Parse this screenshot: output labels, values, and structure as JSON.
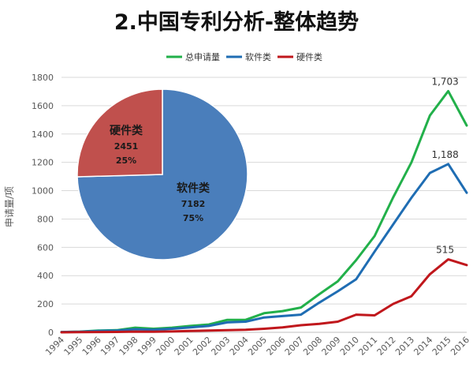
{
  "title": "2.中国专利分析-整体趋势",
  "colors": {
    "total": "#22b04a",
    "software": "#1f6db3",
    "hardware": "#c0171c",
    "pie_software": "#4a7ebb",
    "pie_hardware": "#c0504d",
    "grid": "#d9d9d9",
    "axis_text": "#595959"
  },
  "chart_data": {
    "type": "line",
    "ylabel": "申请量/项",
    "xlabel": "",
    "ylim": [
      0,
      1800
    ],
    "yticks": [
      0,
      200,
      400,
      600,
      800,
      1000,
      1200,
      1400,
      1600,
      1800
    ],
    "grid": true,
    "legend_position": "top",
    "x": [
      "1994",
      "1995",
      "1996",
      "1997",
      "1998",
      "1999",
      "2000",
      "2001",
      "2002",
      "2003",
      "2004",
      "2005",
      "2006",
      "2007",
      "2008",
      "2009",
      "2010",
      "2011",
      "2012",
      "2013",
      "2014",
      "2015",
      "2016"
    ],
    "series": [
      {
        "key": "total",
        "name": "总申请量",
        "color": "#22b04a",
        "values": [
          2,
          5,
          12,
          15,
          33,
          25,
          33,
          45,
          55,
          88,
          88,
          135,
          150,
          175,
          270,
          360,
          510,
          680,
          950,
          1200,
          1530,
          1703,
          1460
        ]
      },
      {
        "key": "software",
        "name": "软件类",
        "color": "#1f6db3",
        "values": [
          2,
          4,
          10,
          12,
          22,
          18,
          25,
          35,
          45,
          70,
          75,
          105,
          115,
          125,
          210,
          290,
          375,
          570,
          760,
          950,
          1125,
          1188,
          985
        ]
      },
      {
        "key": "hardware",
        "name": "硬件类",
        "color": "#c0171c",
        "values": [
          0,
          1,
          2,
          3,
          5,
          4,
          6,
          10,
          12,
          15,
          18,
          25,
          35,
          50,
          60,
          75,
          125,
          120,
          200,
          255,
          410,
          515,
          475
        ]
      }
    ],
    "annotations": [
      {
        "series": "total",
        "x": "2015",
        "label": "1,703"
      },
      {
        "series": "software",
        "x": "2015",
        "label": "1,188"
      },
      {
        "series": "hardware",
        "x": "2015",
        "label": "515"
      }
    ],
    "inset_pie": {
      "type": "pie",
      "slices": [
        {
          "name": "软件类",
          "value": 7182,
          "percent": "75%",
          "color": "#4a7ebb"
        },
        {
          "name": "硬件类",
          "value": 2451,
          "percent": "25%",
          "color": "#c0504d"
        }
      ]
    }
  }
}
